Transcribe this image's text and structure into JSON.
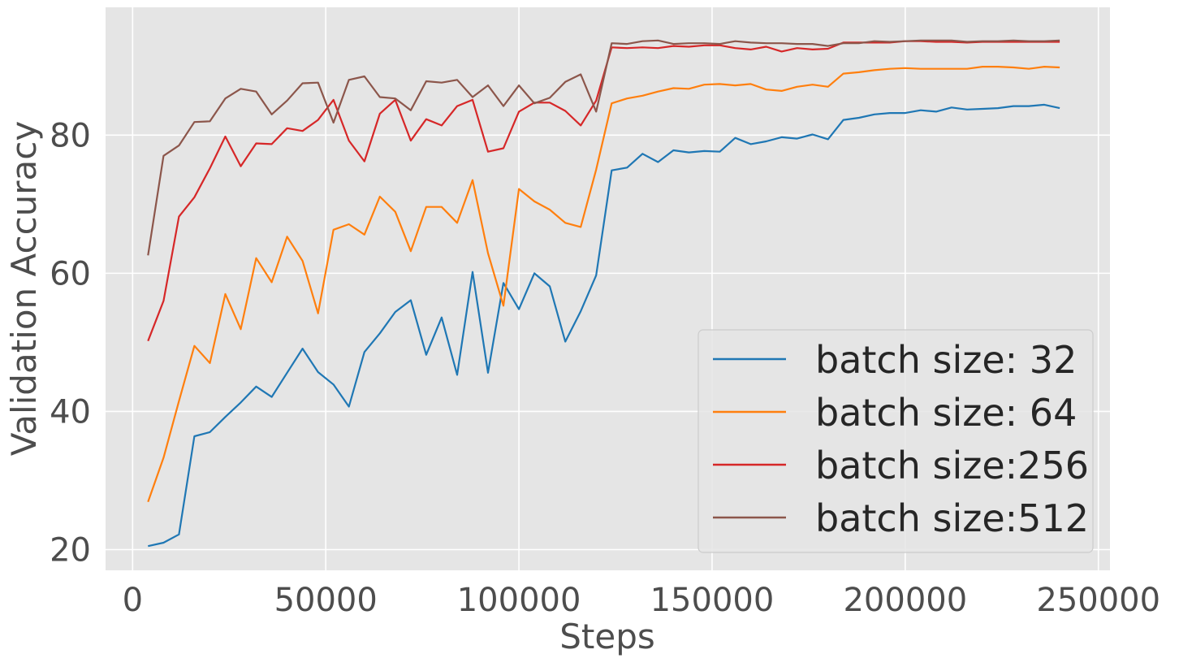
{
  "chart_data": {
    "type": "line",
    "title": "",
    "xlabel": "Steps",
    "ylabel": "Validation Accuracy",
    "xlim": [
      -7000,
      253000
    ],
    "ylim": [
      17,
      98.5
    ],
    "xticks": [
      0,
      50000,
      100000,
      150000,
      200000,
      250000
    ],
    "yticks": [
      20,
      40,
      60,
      80
    ],
    "grid": true,
    "legend_position": "lower-right",
    "x": [
      4000,
      8000,
      12000,
      16000,
      20000,
      24000,
      28000,
      32000,
      36000,
      40000,
      44000,
      48000,
      52000,
      56000,
      60000,
      64000,
      68000,
      72000,
      76000,
      80000,
      84000,
      88000,
      92000,
      96000,
      100000,
      104000,
      108000,
      112000,
      116000,
      120000,
      124000,
      128000,
      132000,
      136000,
      140000,
      144000,
      148000,
      152000,
      156000,
      160000,
      164000,
      168000,
      172000,
      176000,
      180000,
      184000,
      188000,
      192000,
      196000,
      200000,
      204000,
      208000,
      212000,
      216000,
      220000,
      224000,
      228000,
      232000,
      236000,
      240000
    ],
    "series": [
      {
        "name": "batch size: 32",
        "color": "#1f77b4",
        "values": [
          20.5,
          21.0,
          22.2,
          36.4,
          37.0,
          39.2,
          41.3,
          43.6,
          42.1,
          45.6,
          49.1,
          45.7,
          43.9,
          40.7,
          48.6,
          51.3,
          54.4,
          56.1,
          48.2,
          53.6,
          45.3,
          60.2,
          45.6,
          58.6,
          54.8,
          60.0,
          58.1,
          50.1,
          54.5,
          59.7,
          74.9,
          75.3,
          77.3,
          76.1,
          77.8,
          77.5,
          77.7,
          77.6,
          79.6,
          78.7,
          79.1,
          79.7,
          79.5,
          80.1,
          79.4,
          82.2,
          82.5,
          83.0,
          83.2,
          83.2,
          83.6,
          83.4,
          84.0,
          83.7,
          83.8,
          83.9,
          84.2,
          84.2,
          84.4,
          83.9
        ]
      },
      {
        "name": "batch size: 64",
        "color": "#ff7f0e",
        "values": [
          26.9,
          33.3,
          41.5,
          49.5,
          47.0,
          57.0,
          51.9,
          62.2,
          58.7,
          65.3,
          61.8,
          54.2,
          66.3,
          67.1,
          65.6,
          71.1,
          68.9,
          63.2,
          69.6,
          69.6,
          67.3,
          73.5,
          62.9,
          55.3,
          72.2,
          70.4,
          69.2,
          67.3,
          66.7,
          75.0,
          84.6,
          85.3,
          85.7,
          86.3,
          86.8,
          86.7,
          87.3,
          87.4,
          87.2,
          87.4,
          86.6,
          86.4,
          87.0,
          87.3,
          87.0,
          88.9,
          89.1,
          89.4,
          89.6,
          89.7,
          89.6,
          89.6,
          89.6,
          89.6,
          89.9,
          89.9,
          89.8,
          89.6,
          89.9,
          89.8
        ]
      },
      {
        "name": "batch size:256",
        "color": "#d62728",
        "values": [
          50.2,
          56.0,
          68.2,
          71.0,
          75.2,
          79.8,
          75.5,
          78.8,
          78.7,
          81.0,
          80.6,
          82.2,
          85.1,
          79.2,
          76.2,
          83.1,
          85.1,
          79.2,
          82.3,
          81.4,
          84.2,
          85.1,
          77.6,
          78.1,
          83.4,
          84.7,
          84.7,
          83.5,
          81.4,
          85.0,
          92.7,
          92.6,
          92.7,
          92.6,
          92.9,
          92.8,
          93.0,
          93.0,
          92.6,
          92.4,
          92.8,
          92.1,
          92.6,
          92.4,
          92.5,
          93.4,
          93.4,
          93.4,
          93.4,
          93.6,
          93.6,
          93.5,
          93.5,
          93.4,
          93.5,
          93.5,
          93.5,
          93.5,
          93.5,
          93.5
        ]
      },
      {
        "name": "batch size:512",
        "color": "#8c564b",
        "values": [
          62.6,
          77.0,
          78.5,
          81.9,
          82.0,
          85.3,
          86.7,
          86.3,
          83.0,
          85.0,
          87.5,
          87.6,
          81.8,
          88.0,
          88.5,
          85.5,
          85.3,
          83.6,
          87.8,
          87.6,
          88.0,
          85.5,
          87.2,
          84.2,
          87.2,
          84.6,
          85.4,
          87.7,
          88.8,
          83.4,
          93.3,
          93.2,
          93.6,
          93.7,
          93.2,
          93.3,
          93.3,
          93.2,
          93.6,
          93.4,
          93.3,
          93.3,
          93.2,
          93.2,
          92.9,
          93.3,
          93.3,
          93.6,
          93.5,
          93.6,
          93.7,
          93.7,
          93.7,
          93.5,
          93.6,
          93.6,
          93.7,
          93.6,
          93.6,
          93.7
        ]
      }
    ]
  }
}
